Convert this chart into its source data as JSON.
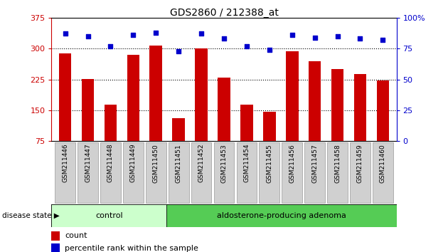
{
  "title": "GDS2860 / 212388_at",
  "categories": [
    "GSM211446",
    "GSM211447",
    "GSM211448",
    "GSM211449",
    "GSM211450",
    "GSM211451",
    "GSM211452",
    "GSM211453",
    "GSM211454",
    "GSM211455",
    "GSM211456",
    "GSM211457",
    "GSM211458",
    "GSM211459",
    "GSM211460"
  ],
  "counts": [
    289,
    226,
    163,
    284,
    307,
    130,
    300,
    229,
    163,
    147,
    293,
    269,
    250,
    238,
    222
  ],
  "percentiles": [
    87,
    85,
    77,
    86,
    88,
    73,
    87,
    83,
    77,
    74,
    86,
    84,
    85,
    83,
    82
  ],
  "control_count": 5,
  "adenoma_count": 10,
  "ylim_left": [
    75,
    375
  ],
  "ylim_right": [
    0,
    100
  ],
  "yticks_left": [
    75,
    150,
    225,
    300,
    375
  ],
  "yticks_right": [
    0,
    25,
    50,
    75,
    100
  ],
  "bar_color": "#cc0000",
  "dot_color": "#0000cc",
  "control_color": "#ccffcc",
  "adenoma_color": "#55cc55",
  "grid_color": "#000000",
  "bg_color": "#ffffff",
  "title_color": "#000000",
  "left_axis_color": "#cc0000",
  "right_axis_color": "#0000cc",
  "legend_count_label": "count",
  "legend_pct_label": "percentile rank within the sample",
  "control_label": "control",
  "adenoma_label": "aldosterone-producing adenoma",
  "disease_state_label": "disease state"
}
